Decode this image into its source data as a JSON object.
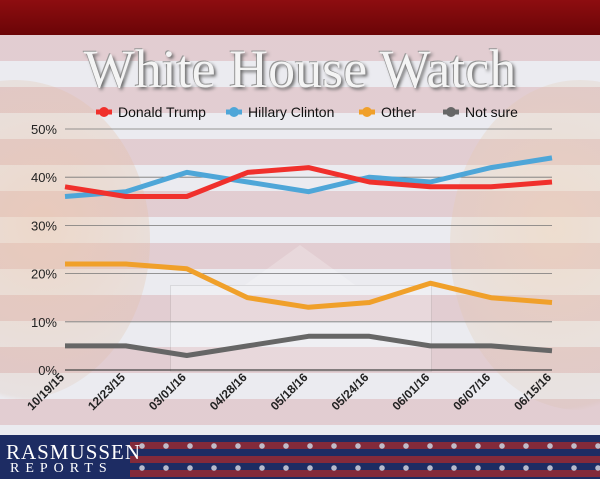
{
  "header": {
    "title": "White House Watch"
  },
  "logo": {
    "line1": "RASMUSSEN",
    "line2": "REPORTS"
  },
  "colors": {
    "band_top": "#8e0d10",
    "band_bottom": "#1d2c63",
    "trump": "#f0302c",
    "clinton": "#4ea6d8",
    "other": "#f0a02a",
    "not_sure": "#666666"
  },
  "chart_data": {
    "type": "line",
    "title": "White House Watch",
    "xlabel": "",
    "ylabel": "",
    "categories": [
      "10/19/15",
      "12/23/15",
      "03/01/16",
      "04/28/16",
      "05/18/16",
      "05/24/16",
      "06/01/16",
      "06/07/16",
      "06/15/16"
    ],
    "ylim": [
      0,
      50
    ],
    "yticks": [
      "0%",
      "10%",
      "20%",
      "30%",
      "40%",
      "50%"
    ],
    "grid": true,
    "legend": "top",
    "series": [
      {
        "name": "Donald Trump",
        "color": "#f0302c",
        "values": [
          38,
          36,
          36,
          41,
          42,
          39,
          38,
          38,
          39
        ]
      },
      {
        "name": "Hillary Clinton",
        "color": "#4ea6d8",
        "values": [
          36,
          37,
          41,
          39,
          37,
          40,
          39,
          42,
          44
        ]
      },
      {
        "name": "Other",
        "color": "#f0a02a",
        "values": [
          22,
          22,
          21,
          15,
          13,
          14,
          18,
          15,
          14
        ]
      },
      {
        "name": "Not sure",
        "color": "#666666",
        "values": [
          5,
          5,
          3,
          5,
          7,
          7,
          5,
          5,
          4
        ]
      }
    ]
  }
}
